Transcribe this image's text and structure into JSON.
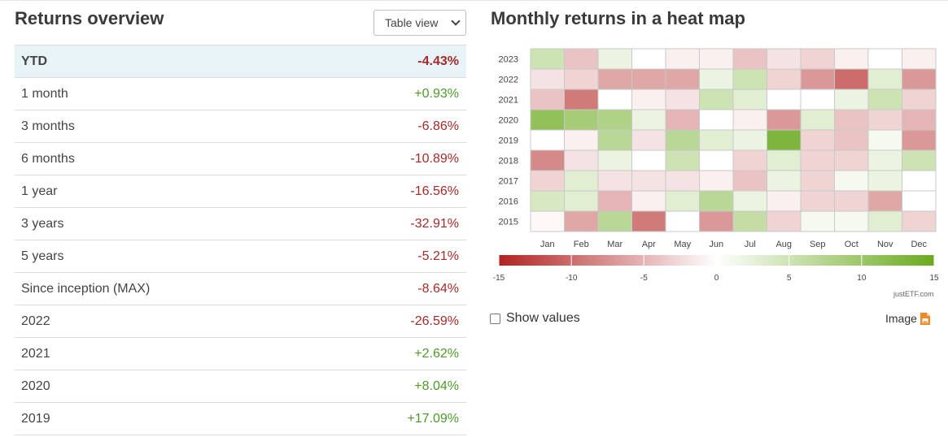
{
  "overview": {
    "title": "Returns overview",
    "view_select": "Table view",
    "rows": [
      {
        "label": "YTD",
        "value": "-4.43%",
        "sign": "neg",
        "highlight": true
      },
      {
        "label": "1 month",
        "value": "+0.93%",
        "sign": "pos"
      },
      {
        "label": "3 months",
        "value": "-6.86%",
        "sign": "neg"
      },
      {
        "label": "6 months",
        "value": "-10.89%",
        "sign": "neg"
      },
      {
        "label": "1 year",
        "value": "-16.56%",
        "sign": "neg"
      },
      {
        "label": "3 years",
        "value": "-32.91%",
        "sign": "neg"
      },
      {
        "label": "5 years",
        "value": "-5.21%",
        "sign": "neg"
      },
      {
        "label": "Since inception (MAX)",
        "value": "-8.64%",
        "sign": "neg"
      },
      {
        "label": "2022",
        "value": "-26.59%",
        "sign": "neg"
      },
      {
        "label": "2021",
        "value": "+2.62%",
        "sign": "pos"
      },
      {
        "label": "2020",
        "value": "+8.04%",
        "sign": "pos"
      },
      {
        "label": "2019",
        "value": "+17.09%",
        "sign": "pos"
      }
    ]
  },
  "heatmap": {
    "title": "Monthly returns in a heat map",
    "show_values_label": "Show values",
    "show_values_checked": false,
    "image_label": "Image",
    "image_icon": "file-image-icon",
    "watermark": "justETF.com",
    "colors": {
      "negative": "#b22222",
      "neutral": "#ffffff",
      "positive": "#6aaa1e"
    }
  },
  "chart_data": {
    "type": "heatmap",
    "x": [
      "Jan",
      "Feb",
      "Mar",
      "Apr",
      "May",
      "Jun",
      "Jul",
      "Aug",
      "Sep",
      "Oct",
      "Nov",
      "Dec"
    ],
    "y": [
      "2023",
      "2022",
      "2021",
      "2020",
      "2019",
      "2018",
      "2017",
      "2016",
      "2015"
    ],
    "values": [
      [
        5,
        -4,
        2,
        0,
        -1,
        -1,
        -4,
        -2,
        -3,
        -1,
        0,
        -1
      ],
      [
        -2,
        -3,
        -6,
        -6,
        -6,
        2,
        5,
        -3,
        -7,
        -10,
        3,
        -7
      ],
      [
        -4,
        -9,
        0,
        -1,
        -2,
        5,
        3,
        0,
        0,
        2,
        5,
        -3
      ],
      [
        11,
        9,
        8,
        2,
        -5,
        0,
        -1,
        -7,
        3,
        -4,
        -3,
        -5
      ],
      [
        0,
        -1,
        7,
        -2,
        7,
        3,
        2,
        13,
        -3,
        -4,
        1,
        -7
      ],
      [
        -8,
        -2,
        2,
        0,
        5,
        0,
        -3,
        3,
        -3,
        -3,
        2,
        5
      ],
      [
        -3,
        3,
        -2,
        -2,
        -2,
        -1,
        -4,
        2,
        -3,
        1,
        2,
        0
      ],
      [
        4,
        3,
        -5,
        -1,
        3,
        7,
        2,
        -1,
        -3,
        -3,
        -6,
        0
      ],
      [
        -0.5,
        -6,
        7,
        -9,
        0,
        -7,
        6,
        -3,
        1,
        1,
        3,
        -3
      ]
    ],
    "colorbar": {
      "min": -15,
      "max": 15,
      "ticks": [
        -15,
        -10,
        -5,
        0,
        5,
        10,
        15
      ]
    }
  }
}
